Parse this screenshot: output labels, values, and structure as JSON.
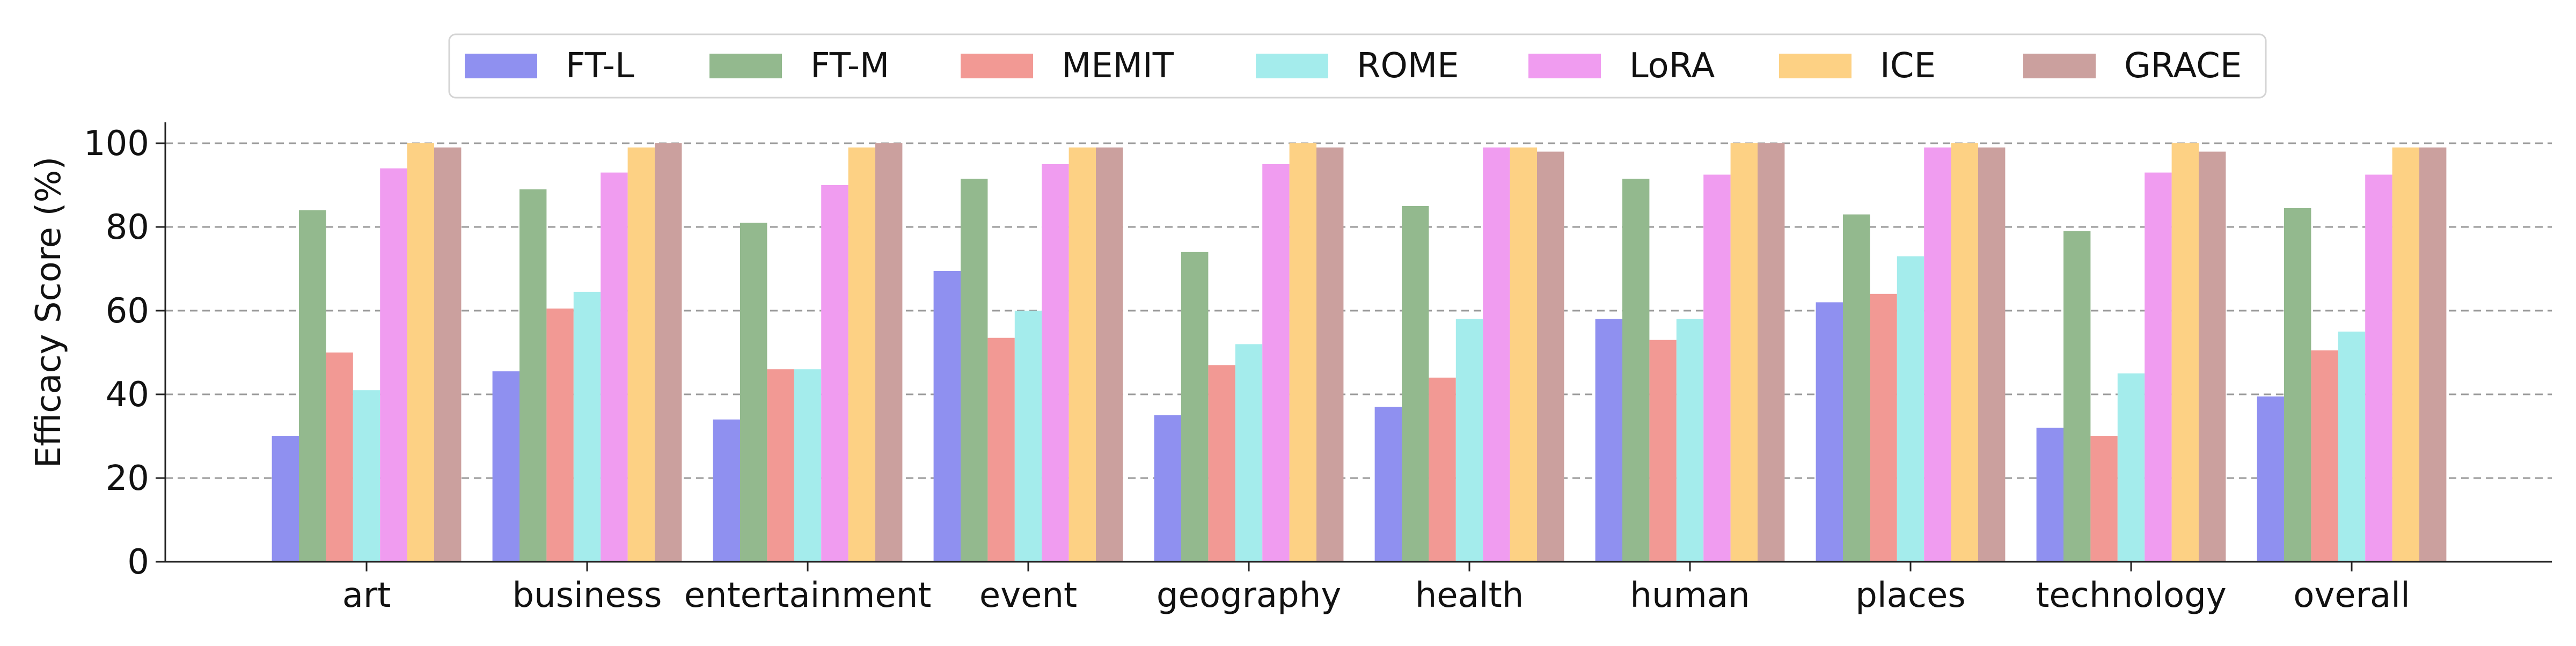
{
  "chart_data": {
    "type": "bar",
    "ylabel": "Efficacy Score (%)",
    "xlabel": "",
    "ylim": [
      0,
      105
    ],
    "yticks": [
      0,
      20,
      40,
      60,
      80,
      100
    ],
    "grid": "horizontal dashed",
    "legend_position": "top",
    "categories": [
      "art",
      "business",
      "entertainment",
      "event",
      "geography",
      "health",
      "human",
      "places",
      "technology",
      "overall"
    ],
    "series": [
      {
        "name": "FT-L",
        "color": "#8f90f0",
        "values": [
          30,
          45.5,
          34,
          69.5,
          35,
          37,
          58,
          62,
          32,
          39.5
        ]
      },
      {
        "name": "FT-M",
        "color": "#93b98e",
        "values": [
          84,
          89,
          81,
          91.5,
          74,
          85,
          91.5,
          83,
          79,
          84.5
        ]
      },
      {
        "name": "MEMIT",
        "color": "#f29994",
        "values": [
          50,
          60.5,
          46,
          53.5,
          47,
          44,
          53,
          64,
          30,
          50.5
        ]
      },
      {
        "name": "ROME",
        "color": "#a4ecec",
        "values": [
          41,
          64.5,
          46,
          60,
          52,
          58,
          58,
          73,
          45,
          55
        ]
      },
      {
        "name": "LoRA",
        "color": "#f09cf0",
        "values": [
          94,
          93,
          90,
          95,
          95,
          99,
          92.5,
          99,
          93,
          92.5
        ]
      },
      {
        "name": "ICE",
        "color": "#fdd184",
        "values": [
          100,
          99,
          99,
          99,
          100,
          99,
          100,
          100,
          100,
          99
        ]
      },
      {
        "name": "GRACE",
        "color": "#cba09e",
        "values": [
          99,
          100,
          100,
          99,
          99,
          98,
          100,
          99,
          98,
          99
        ]
      }
    ]
  }
}
